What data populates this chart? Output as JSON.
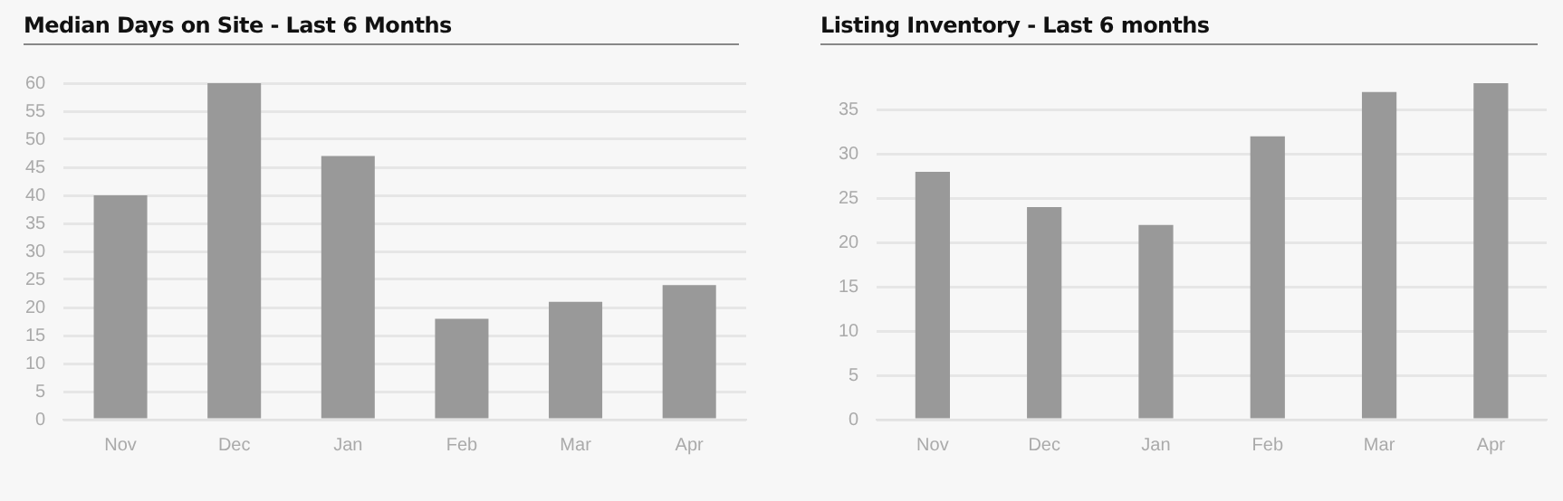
{
  "chart_data": [
    {
      "type": "bar",
      "title": "Median Days on Site - Last 6 Months",
      "categories": [
        "Nov",
        "Dec",
        "Jan",
        "Feb",
        "Mar",
        "Apr"
      ],
      "values": [
        40,
        60,
        47,
        18,
        21,
        24
      ],
      "color": "#999999",
      "ylim": [
        0,
        60
      ],
      "yticks": [
        0,
        5,
        10,
        15,
        20,
        25,
        30,
        35,
        40,
        45,
        50,
        55,
        60
      ],
      "grid": "y",
      "legend": false
    },
    {
      "type": "bar",
      "title": "Listing Inventory - Last 6 months",
      "categories": [
        "Nov",
        "Dec",
        "Jan",
        "Feb",
        "Mar",
        "Apr"
      ],
      "values": [
        28,
        24,
        22,
        32,
        37,
        38
      ],
      "color": "#999999",
      "ylim": [
        0,
        38
      ],
      "yticks": [
        0,
        5,
        10,
        15,
        20,
        25,
        30,
        35
      ],
      "grid": "y",
      "legend": false
    }
  ]
}
